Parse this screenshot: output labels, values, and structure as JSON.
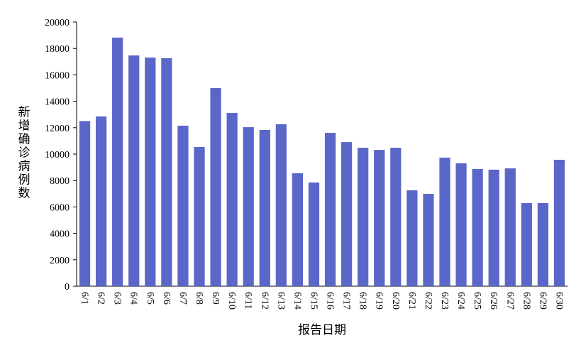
{
  "chart_data": {
    "type": "bar",
    "x_label": "报告日期",
    "y_label": "新增确诊病例数",
    "categories": [
      "6/1",
      "6/2",
      "6/3",
      "6/4",
      "6/5",
      "6/6",
      "6/7",
      "6/8",
      "6/9",
      "6/10",
      "6/11",
      "6/12",
      "6/13",
      "6/14",
      "6/15",
      "6/16",
      "6/17",
      "6/18",
      "6/19",
      "6/20",
      "6/21",
      "6/22",
      "6/23",
      "6/24",
      "6/25",
      "6/26",
      "6/27",
      "6/28",
      "6/29",
      "6/30"
    ],
    "values": [
      12500,
      12850,
      18820,
      17470,
      17310,
      17260,
      12150,
      10540,
      15000,
      13120,
      12040,
      11830,
      12260,
      8550,
      7850,
      11610,
      10910,
      10480,
      10320,
      10480,
      7260,
      6990,
      9730,
      9300,
      8870,
      8820,
      8920,
      6290,
      6290,
      9570
    ],
    "color": "#5b67c8",
    "ylim": [
      0,
      20000
    ],
    "yticks": [
      0,
      2000,
      4000,
      6000,
      8000,
      10000,
      12000,
      14000,
      16000,
      18000,
      20000
    ],
    "grid": false
  }
}
